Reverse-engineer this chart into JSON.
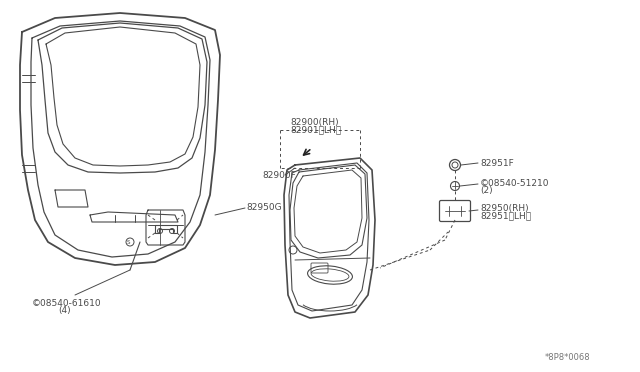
{
  "bg_color": "#ffffff",
  "line_color": "#4a4a4a",
  "text_color": "#4a4a4a",
  "fig_width": 6.4,
  "fig_height": 3.72,
  "dpi": 100,
  "labels": {
    "part1": "82950G",
    "part2_line1": "82900(RH)",
    "part2_line2": "82901〈LH〉",
    "part3": "82900F",
    "part4": "82951F",
    "part5_line1": "©08540-51210",
    "part5_line2": "(2)",
    "part6_line1": "82950(RH)",
    "part6_line2": "82951〈LH〉",
    "part7_line1": "©08540-61610",
    "part7_line2": "(4)",
    "footer": "*8P8*0068"
  }
}
